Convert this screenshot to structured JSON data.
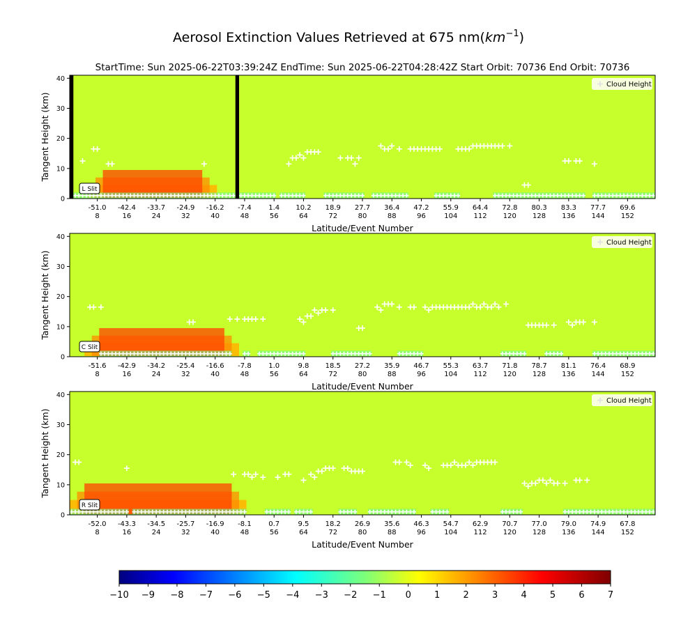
{
  "figure": {
    "title": "Aerosol Extinction Values Retrieved at 675 nm",
    "title_unit": "km",
    "title_unit_exp": "−1",
    "subtitle": "StartTime: Sun 2025-06-22T03:39:24Z  EndTime: Sun 2025-06-22T04:28:42Z  Start Orbit: 70736 End Orbit: 70736"
  },
  "colors": {
    "background": "#c6ff2c",
    "cloud_marker": "#ffffff",
    "fill_band": "#000000",
    "colormap": "jet"
  },
  "chart_data": [
    {
      "type": "heatmap",
      "panel": "L Slit",
      "xlabel": "Latitude/Event Number",
      "ylabel": "Tangent Height (km)",
      "ylim": [
        0,
        41
      ],
      "y_ticks": [
        "0",
        "10",
        "20",
        "30",
        "40"
      ],
      "x_range": [
        1,
        159
      ],
      "x_ticks": [
        {
          "event": 8,
          "lat": "-51.0",
          "num": "8"
        },
        {
          "event": 16,
          "lat": "-42.4",
          "num": "16"
        },
        {
          "event": 24,
          "lat": "-33.7",
          "num": "24"
        },
        {
          "event": 32,
          "lat": "-24.9",
          "num": "32"
        },
        {
          "event": 40,
          "lat": "-16.2",
          "num": "40"
        },
        {
          "event": 48,
          "lat": "-7.4",
          "num": "48"
        },
        {
          "event": 56,
          "lat": "1.4",
          "num": "56"
        },
        {
          "event": 64,
          "lat": "10.2",
          "num": "64"
        },
        {
          "event": 72,
          "lat": "18.9",
          "num": "72"
        },
        {
          "event": 80,
          "lat": "27.7",
          "num": "80"
        },
        {
          "event": 88,
          "lat": "36.4",
          "num": "88"
        },
        {
          "event": 96,
          "lat": "47.2",
          "num": "96"
        },
        {
          "event": 104,
          "lat": "55.9",
          "num": "104"
        },
        {
          "event": 112,
          "lat": "64.4",
          "num": "112"
        },
        {
          "event": 120,
          "lat": "72.8",
          "num": "120"
        },
        {
          "event": 128,
          "lat": "80.3",
          "num": "128"
        },
        {
          "event": 136,
          "lat": "83.3",
          "num": "136"
        },
        {
          "event": 144,
          "lat": "77.7",
          "num": "144"
        },
        {
          "event": 152,
          "lat": "69.6",
          "num": "152"
        }
      ],
      "missing_events": [
        1,
        46
      ],
      "legend": {
        "label": "Cloud Height",
        "position": "top-right"
      },
      "cloud_heights": [
        [
          4,
          12.5
        ],
        [
          7,
          16.5
        ],
        [
          8,
          16.5
        ],
        [
          11,
          11.5
        ],
        [
          12,
          11.5
        ],
        [
          37,
          11.5
        ],
        [
          60,
          11.5
        ],
        [
          61,
          13.5
        ],
        [
          62,
          13.5
        ],
        [
          63,
          14.5
        ],
        [
          64,
          13.5
        ],
        [
          65,
          15.5
        ],
        [
          66,
          15.5
        ],
        [
          67,
          15.5
        ],
        [
          68,
          15.5
        ],
        [
          74,
          13.5
        ],
        [
          76,
          13.5
        ],
        [
          77,
          13.5
        ],
        [
          78,
          11.5
        ],
        [
          79,
          13.5
        ],
        [
          85,
          17.5
        ],
        [
          86,
          16.5
        ],
        [
          87,
          16.5
        ],
        [
          88,
          17.5
        ],
        [
          90,
          16.5
        ],
        [
          93,
          16.5
        ],
        [
          94,
          16.5
        ],
        [
          95,
          16.5
        ],
        [
          96,
          16.5
        ],
        [
          97,
          16.5
        ],
        [
          98,
          16.5
        ],
        [
          99,
          16.5
        ],
        [
          100,
          16.5
        ],
        [
          101,
          16.5
        ],
        [
          106,
          16.5
        ],
        [
          107,
          16.5
        ],
        [
          108,
          16.5
        ],
        [
          109,
          16.5
        ],
        [
          110,
          17.5
        ],
        [
          111,
          17.5
        ],
        [
          112,
          17.5
        ],
        [
          113,
          17.5
        ],
        [
          114,
          17.5
        ],
        [
          115,
          17.5
        ],
        [
          116,
          17.5
        ],
        [
          117,
          17.5
        ],
        [
          118,
          17.5
        ],
        [
          120,
          17.5
        ],
        [
          124,
          4.5
        ],
        [
          125,
          4.5
        ],
        [
          135,
          12.5
        ],
        [
          136,
          12.5
        ],
        [
          138,
          12.5
        ],
        [
          139,
          12.5
        ],
        [
          143,
          11.5
        ]
      ],
      "low_aerosol_band": {
        "event_range": [
          6,
          40
        ],
        "height_range": [
          0,
          10
        ],
        "peak_value": 3.5
      },
      "low_clouds": {
        "event_ranges": [
          [
            1,
            56
          ],
          [
            58,
            64
          ],
          [
            70,
            80
          ],
          [
            83,
            92
          ],
          [
            100,
            106
          ],
          [
            116,
            140
          ],
          [
            143,
            159
          ]
        ],
        "height": 1
      }
    },
    {
      "type": "heatmap",
      "panel": "C Slit",
      "xlabel": "Latitude/Event Number",
      "ylabel": "Tangent Height (km)",
      "ylim": [
        0,
        41
      ],
      "y_ticks": [
        "0",
        "10",
        "20",
        "30",
        "40"
      ],
      "x_range": [
        1,
        159
      ],
      "x_ticks": [
        {
          "event": 8,
          "lat": "-51.6",
          "num": "8"
        },
        {
          "event": 16,
          "lat": "-42.9",
          "num": "16"
        },
        {
          "event": 24,
          "lat": "-34.2",
          "num": "24"
        },
        {
          "event": 32,
          "lat": "-25.4",
          "num": "32"
        },
        {
          "event": 40,
          "lat": "-16.6",
          "num": "40"
        },
        {
          "event": 48,
          "lat": "-7.8",
          "num": "48"
        },
        {
          "event": 56,
          "lat": "1.0",
          "num": "56"
        },
        {
          "event": 64,
          "lat": "9.8",
          "num": "64"
        },
        {
          "event": 72,
          "lat": "18.5",
          "num": "72"
        },
        {
          "event": 80,
          "lat": "27.2",
          "num": "80"
        },
        {
          "event": 88,
          "lat": "35.9",
          "num": "88"
        },
        {
          "event": 96,
          "lat": "46.7",
          "num": "96"
        },
        {
          "event": 104,
          "lat": "55.3",
          "num": "104"
        },
        {
          "event": 112,
          "lat": "63.7",
          "num": "112"
        },
        {
          "event": 120,
          "lat": "71.8",
          "num": "120"
        },
        {
          "event": 128,
          "lat": "78.7",
          "num": "128"
        },
        {
          "event": 136,
          "lat": "81.1",
          "num": "136"
        },
        {
          "event": 144,
          "lat": "76.4",
          "num": "144"
        },
        {
          "event": 152,
          "lat": "68.9",
          "num": "152"
        }
      ],
      "missing_events": [],
      "legend": {
        "label": "Cloud Height",
        "position": "top-right"
      },
      "cloud_heights": [
        [
          6,
          16.5
        ],
        [
          7,
          16.5
        ],
        [
          9,
          16.5
        ],
        [
          33,
          11.5
        ],
        [
          34,
          11.5
        ],
        [
          44,
          12.5
        ],
        [
          46,
          12.5
        ],
        [
          48,
          12.5
        ],
        [
          49,
          12.5
        ],
        [
          50,
          12.5
        ],
        [
          51,
          12.5
        ],
        [
          53,
          12.5
        ],
        [
          63,
          12.5
        ],
        [
          64,
          11.5
        ],
        [
          65,
          13.5
        ],
        [
          66,
          13.5
        ],
        [
          67,
          15.5
        ],
        [
          68,
          14.5
        ],
        [
          69,
          15.5
        ],
        [
          70,
          15.5
        ],
        [
          72,
          15.5
        ],
        [
          79,
          9.5
        ],
        [
          80,
          9.5
        ],
        [
          84,
          16.5
        ],
        [
          85,
          15.5
        ],
        [
          86,
          17.5
        ],
        [
          87,
          17.5
        ],
        [
          88,
          17.5
        ],
        [
          90,
          16.5
        ],
        [
          93,
          16.5
        ],
        [
          94,
          16.5
        ],
        [
          97,
          16.5
        ],
        [
          98,
          15.5
        ],
        [
          99,
          16.5
        ],
        [
          100,
          16.5
        ],
        [
          101,
          16.5
        ],
        [
          102,
          16.5
        ],
        [
          103,
          16.5
        ],
        [
          104,
          16.5
        ],
        [
          105,
          16.5
        ],
        [
          106,
          16.5
        ],
        [
          107,
          16.5
        ],
        [
          108,
          16.5
        ],
        [
          109,
          16.5
        ],
        [
          110,
          17.5
        ],
        [
          111,
          16.5
        ],
        [
          112,
          16.5
        ],
        [
          113,
          17.5
        ],
        [
          114,
          16.5
        ],
        [
          115,
          16.5
        ],
        [
          116,
          17.5
        ],
        [
          117,
          16.5
        ],
        [
          119,
          17.5
        ],
        [
          125,
          10.5
        ],
        [
          126,
          10.5
        ],
        [
          127,
          10.5
        ],
        [
          128,
          10.5
        ],
        [
          129,
          10.5
        ],
        [
          130,
          10.5
        ],
        [
          132,
          10.5
        ],
        [
          136,
          11.5
        ],
        [
          137,
          10.5
        ],
        [
          138,
          11.5
        ],
        [
          139,
          11.5
        ],
        [
          140,
          11.5
        ],
        [
          143,
          11.5
        ]
      ],
      "low_aerosol_band": {
        "event_range": [
          5,
          46
        ],
        "height_range": [
          0,
          10
        ],
        "peak_value": 3.5
      },
      "low_clouds": {
        "event_ranges": [
          [
            9,
            44
          ],
          [
            48,
            49
          ],
          [
            52,
            64
          ],
          [
            72,
            82
          ],
          [
            90,
            96
          ],
          [
            118,
            124
          ],
          [
            130,
            134
          ],
          [
            143,
            159
          ]
        ],
        "height": 1
      }
    },
    {
      "type": "heatmap",
      "panel": "R Slit",
      "xlabel": "Latitude/Event Number",
      "ylabel": "Tangent Height (km)",
      "ylim": [
        0,
        41
      ],
      "y_ticks": [
        "0",
        "10",
        "20",
        "30",
        "40"
      ],
      "x_range": [
        1,
        159
      ],
      "x_ticks": [
        {
          "event": 8,
          "lat": "-52.0",
          "num": "8"
        },
        {
          "event": 16,
          "lat": "-43.3",
          "num": "16"
        },
        {
          "event": 24,
          "lat": "-34.5",
          "num": "24"
        },
        {
          "event": 32,
          "lat": "-25.7",
          "num": "32"
        },
        {
          "event": 40,
          "lat": "-16.9",
          "num": "40"
        },
        {
          "event": 48,
          "lat": "-8.1",
          "num": "48"
        },
        {
          "event": 56,
          "lat": "0.7",
          "num": "56"
        },
        {
          "event": 64,
          "lat": "9.5",
          "num": "64"
        },
        {
          "event": 72,
          "lat": "18.2",
          "num": "72"
        },
        {
          "event": 80,
          "lat": "26.9",
          "num": "80"
        },
        {
          "event": 88,
          "lat": "35.6",
          "num": "88"
        },
        {
          "event": 96,
          "lat": "46.3",
          "num": "96"
        },
        {
          "event": 104,
          "lat": "54.7",
          "num": "104"
        },
        {
          "event": 112,
          "lat": "62.9",
          "num": "112"
        },
        {
          "event": 120,
          "lat": "70.7",
          "num": "120"
        },
        {
          "event": 128,
          "lat": "77.0",
          "num": "128"
        },
        {
          "event": 136,
          "lat": "79.0",
          "num": "136"
        },
        {
          "event": 144,
          "lat": "74.9",
          "num": "144"
        },
        {
          "event": 152,
          "lat": "67.8",
          "num": "152"
        }
      ],
      "missing_events": [],
      "legend": {
        "label": "Cloud Height",
        "position": "top-right"
      },
      "cloud_heights": [
        [
          2,
          17.5
        ],
        [
          3,
          17.5
        ],
        [
          16,
          15.5
        ],
        [
          45,
          13.5
        ],
        [
          48,
          13.5
        ],
        [
          49,
          13.5
        ],
        [
          50,
          12.5
        ],
        [
          51,
          13.5
        ],
        [
          53,
          12.5
        ],
        [
          57,
          12.5
        ],
        [
          59,
          13.5
        ],
        [
          60,
          13.5
        ],
        [
          64,
          11.5
        ],
        [
          66,
          13.5
        ],
        [
          67,
          12.5
        ],
        [
          68,
          14.5
        ],
        [
          69,
          14.5
        ],
        [
          70,
          15.5
        ],
        [
          71,
          15.5
        ],
        [
          72,
          15.5
        ],
        [
          75,
          15.5
        ],
        [
          76,
          15.5
        ],
        [
          77,
          14.5
        ],
        [
          78,
          14.5
        ],
        [
          79,
          14.5
        ],
        [
          80,
          14.5
        ],
        [
          89,
          17.5
        ],
        [
          90,
          17.5
        ],
        [
          92,
          17.5
        ],
        [
          93,
          16.5
        ],
        [
          97,
          16.5
        ],
        [
          98,
          15.5
        ],
        [
          102,
          16.5
        ],
        [
          103,
          16.5
        ],
        [
          104,
          16.5
        ],
        [
          105,
          17.5
        ],
        [
          106,
          16.5
        ],
        [
          107,
          16.5
        ],
        [
          108,
          16.5
        ],
        [
          109,
          17.5
        ],
        [
          110,
          16.5
        ],
        [
          111,
          17.5
        ],
        [
          112,
          17.5
        ],
        [
          113,
          17.5
        ],
        [
          114,
          17.5
        ],
        [
          115,
          17.5
        ],
        [
          116,
          17.5
        ],
        [
          124,
          10.5
        ],
        [
          125,
          9.5
        ],
        [
          126,
          10.5
        ],
        [
          127,
          10.5
        ],
        [
          128,
          11.5
        ],
        [
          129,
          11.5
        ],
        [
          130,
          10.5
        ],
        [
          131,
          11.5
        ],
        [
          132,
          10.5
        ],
        [
          133,
          10.5
        ],
        [
          135,
          10.5
        ],
        [
          138,
          11.5
        ],
        [
          139,
          11.5
        ],
        [
          141,
          11.5
        ]
      ],
      "low_aerosol_band": {
        "event_range": [
          1,
          48
        ],
        "height_range": [
          0,
          11
        ],
        "peak_value": 3.5
      },
      "low_clouds": {
        "event_ranges": [
          [
            1,
            16
          ],
          [
            18,
            48
          ],
          [
            54,
            60
          ],
          [
            62,
            66
          ],
          [
            74,
            78
          ],
          [
            82,
            94
          ],
          [
            99,
            103
          ],
          [
            118,
            123
          ],
          [
            135,
            159
          ]
        ],
        "height": 1
      }
    }
  ],
  "colorbar": {
    "min": -10,
    "max": 7,
    "ticks": [
      "−10",
      "−9",
      "−8",
      "−7",
      "−6",
      "−5",
      "−4",
      "−3",
      "−2",
      "−1",
      "0",
      "1",
      "2",
      "3",
      "4",
      "5",
      "6",
      "7"
    ]
  }
}
